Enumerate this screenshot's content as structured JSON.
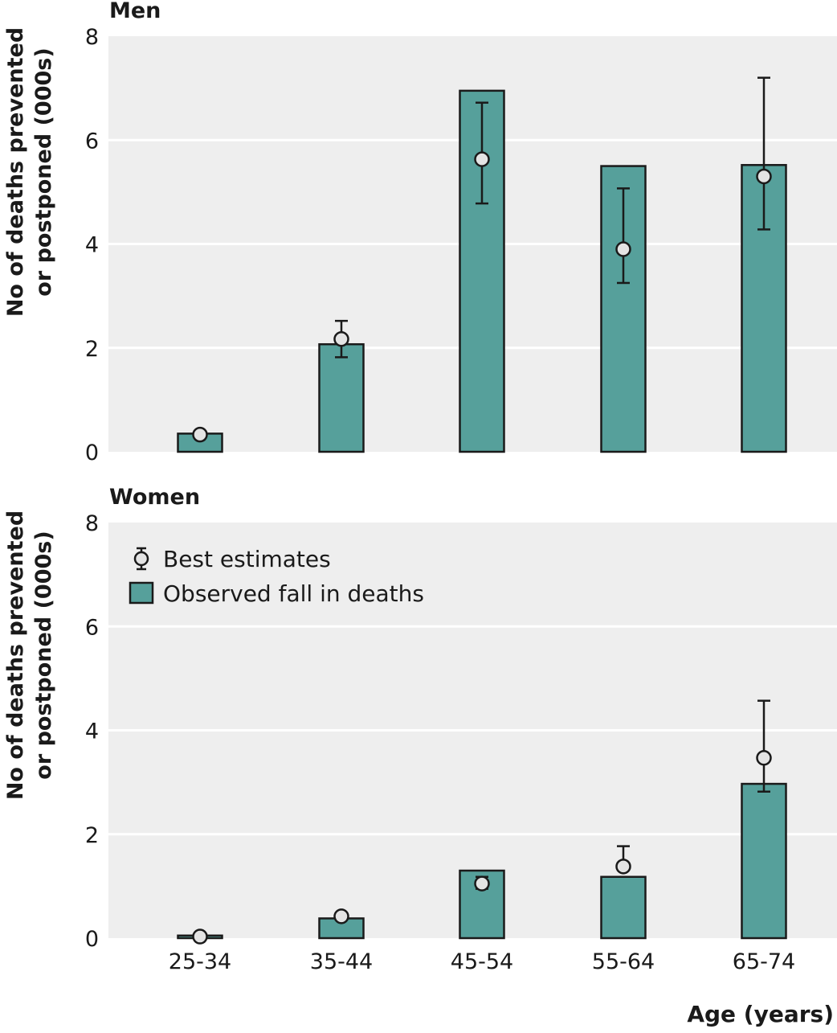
{
  "chart_data": [
    {
      "type": "bar",
      "title": "Men",
      "ylabel": [
        "No of deaths prevented",
        "or postponed (000s)"
      ],
      "ylim": [
        0,
        8
      ],
      "yticks": [
        "0",
        "2",
        "4",
        "6",
        "8"
      ],
      "categories": [
        "25-34",
        "35-44",
        "45-54",
        "55-64",
        "65-74"
      ],
      "series": [
        {
          "name": "Observed fall in deaths",
          "values": [
            0.35,
            2.07,
            6.95,
            5.5,
            5.52
          ]
        },
        {
          "name": "Best estimates",
          "values": [
            0.33,
            2.17,
            5.63,
            3.9,
            5.3
          ],
          "ci_low": [
            null,
            1.82,
            4.78,
            3.25,
            4.28
          ],
          "ci_high": [
            null,
            2.52,
            6.72,
            5.07,
            7.2
          ]
        }
      ]
    },
    {
      "type": "bar",
      "title": "Women",
      "ylabel": [
        "No of deaths prevented",
        "or postponed (000s)"
      ],
      "ylim": [
        0,
        8
      ],
      "yticks": [
        "0",
        "2",
        "4",
        "6",
        "8"
      ],
      "categories": [
        "25-34",
        "35-44",
        "45-54",
        "55-64",
        "65-74"
      ],
      "xticklabels": [
        "25-34",
        "35-44",
        "45-54",
        "55-64",
        "65-74"
      ],
      "xlabel": "Age (years)",
      "legend": {
        "position": "top-left",
        "items": [
          "Best estimates",
          "Observed fall in deaths"
        ]
      },
      "series": [
        {
          "name": "Observed fall in deaths",
          "values": [
            0.05,
            0.38,
            1.3,
            1.18,
            2.97
          ]
        },
        {
          "name": "Best estimates",
          "values": [
            0.03,
            0.42,
            1.05,
            1.38,
            3.47
          ],
          "ci_low": [
            null,
            null,
            0.95,
            null,
            2.82
          ],
          "ci_high": [
            null,
            null,
            1.18,
            1.77,
            4.57
          ]
        }
      ]
    }
  ],
  "colors": {
    "bar": "#56a09b",
    "plot_bg": "#eeeeee",
    "grid": "#ffffff",
    "marker_fill": "#e4e4e4",
    "ink": "#1a1a1a"
  }
}
